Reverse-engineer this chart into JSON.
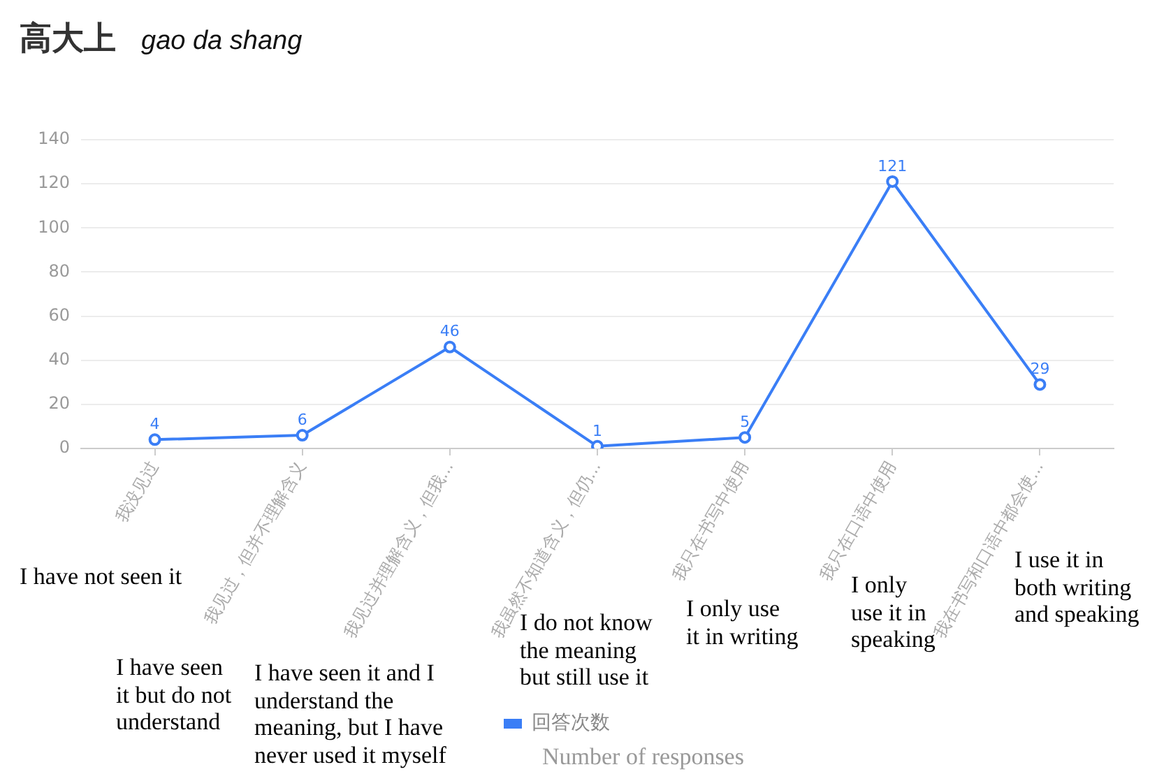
{
  "chart_data": {
    "type": "line",
    "title": "高大上",
    "subtitle": "gao da shang",
    "categories": [
      "我没见过",
      "我见过，但并不理解含义",
      "我见过并理解含义，但我...",
      "我虽然不知道含义，但仍...",
      "我只在书写中使用",
      "我只在口语中使用",
      "我在书写和口语中都会使..."
    ],
    "series": [
      {
        "name": "回答次数",
        "color": "#3a7ef6",
        "values": [
          4,
          6,
          46,
          1,
          5,
          121,
          29
        ]
      }
    ],
    "ylim": [
      0,
      140
    ],
    "yticks": [
      0,
      20,
      40,
      60,
      80,
      100,
      120,
      140
    ],
    "grid": "y",
    "legend": "bottom",
    "marker": "circle",
    "line_style": "solid",
    "data_labels": true,
    "annotations": [
      "I have not seen it",
      "I have seen it but do not understand",
      "I have seen it and I understand the meaning, but I have never used it myself",
      "I do not know the meaning but still use it",
      "I only use it in writing",
      "I only use it in speaking",
      "I use it in both writing and speaking",
      "Number of responses"
    ]
  }
}
